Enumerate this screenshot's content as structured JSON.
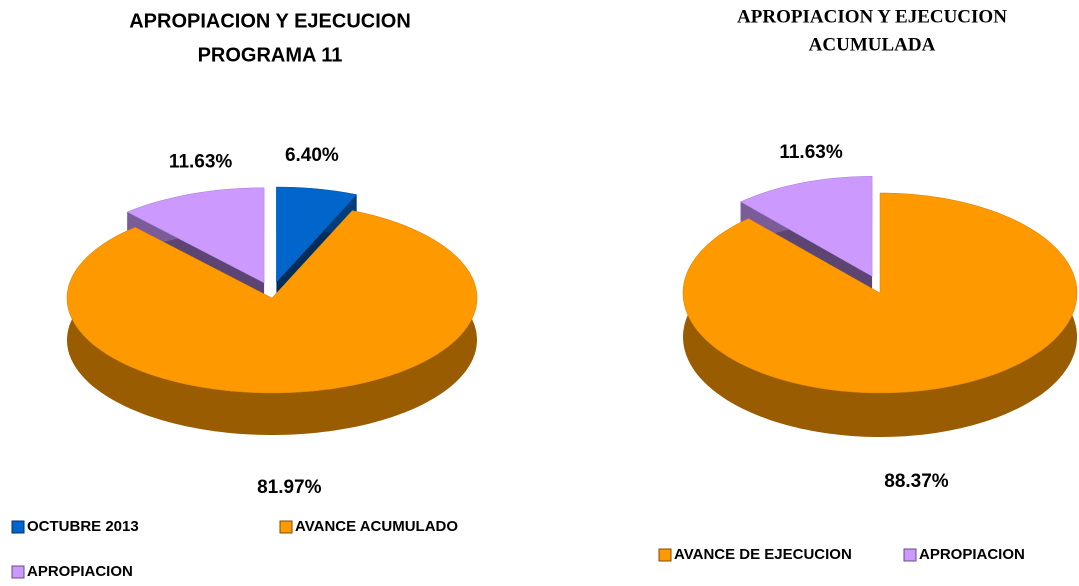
{
  "chart_data": [
    {
      "type": "pie3d",
      "title": [
        "APROPIACION Y EJECUCION",
        "PROGRAMA 11"
      ],
      "categories": [
        "OCTUBRE 2013",
        "AVANCE ACUMULADO",
        "APROPIACION"
      ],
      "values": [
        6.4,
        81.97,
        11.63
      ],
      "value_labels": [
        "6.40%",
        "81.97%",
        "11.63%"
      ],
      "colors": [
        "#0066cc",
        "#ff9900",
        "#cc99ff"
      ],
      "exploded": [
        true,
        false,
        true
      ],
      "legend": "bottom"
    },
    {
      "type": "pie3d",
      "title": [
        "APROPIACION Y EJECUCION",
        "ACUMULADA"
      ],
      "categories": [
        "AVANCE DE EJECUCION",
        "APROPIACION"
      ],
      "values": [
        88.37,
        11.63
      ],
      "value_labels": [
        "88.37%",
        "11.63%"
      ],
      "colors": [
        "#ff9900",
        "#cc99ff"
      ],
      "exploded": [
        false,
        true
      ],
      "legend": "bottom"
    }
  ]
}
